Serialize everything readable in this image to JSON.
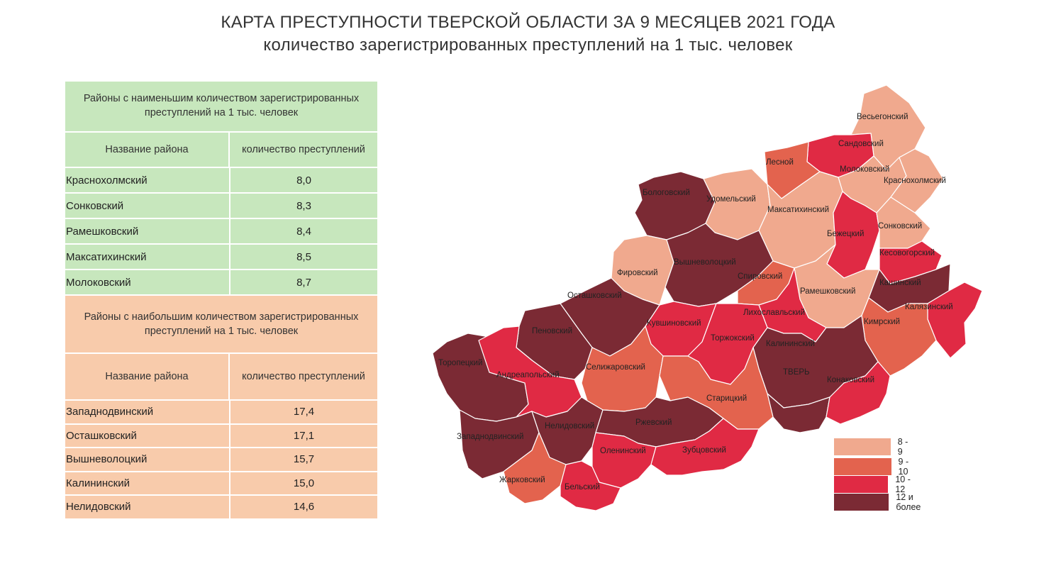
{
  "title": "КАРТА ПРЕСТУПНОСТИ ТВЕРСКОЙ ОБЛАСТИ ЗА 9 МЕСЯЦЕВ 2021 ГОДА",
  "subtitle": "количество зарегистрированных преступлений на 1 тыс. человек",
  "low_table": {
    "caption": "Районы с наименьшим количеством зарегистрированных преступлений на 1 тыс. человек",
    "col_name": "Название района",
    "col_value": "количество преступлений",
    "color": "#c7e7bd",
    "rows": [
      {
        "name": "Краснохолмский",
        "value": "8,0"
      },
      {
        "name": "Сонковский",
        "value": "8,3"
      },
      {
        "name": "Рамешковский",
        "value": "8,4"
      },
      {
        "name": "Максатихинский",
        "value": "8,5"
      },
      {
        "name": "Молоковский",
        "value": "8,7"
      }
    ]
  },
  "high_table": {
    "caption": "Районы с наибольшим количеством зарегистрированных преступлений на 1 тыс. человек",
    "col_name": "Название района",
    "col_value": "количество преступлений",
    "color": "#f8cbab",
    "rows": [
      {
        "name": "Западнодвинский",
        "value": "17,4"
      },
      {
        "name": "Осташковский",
        "value": "17,1"
      },
      {
        "name": "Вышневолоцкий",
        "value": "15,7"
      },
      {
        "name": "Калининский",
        "value": "15,0"
      },
      {
        "name": "Нелидовский",
        "value": "14,6"
      }
    ]
  },
  "legend": [
    {
      "label": "8 - 9",
      "color": "#f0a98e"
    },
    {
      "label": "9 - 10",
      "color": "#e3634e"
    },
    {
      "label": "10 - 12",
      "color": "#e02a44"
    },
    {
      "label": "12 и более",
      "color": "#7b2a34"
    }
  ],
  "districts": [
    {
      "name": "Весьегонский",
      "class": 0
    },
    {
      "name": "Сандовский",
      "class": 2
    },
    {
      "name": "Лесной",
      "class": 1
    },
    {
      "name": "Молоковский",
      "class": 0
    },
    {
      "name": "Краснохолмский",
      "class": 0
    },
    {
      "name": "Бологовский",
      "class": 3
    },
    {
      "name": "Удомельский",
      "class": 0
    },
    {
      "name": "Максатихинский",
      "class": 0
    },
    {
      "name": "Бежецкий",
      "class": 2
    },
    {
      "name": "Сонковский",
      "class": 0
    },
    {
      "name": "Кесовогорский",
      "class": 2
    },
    {
      "name": "Фировский",
      "class": 0
    },
    {
      "name": "Вышневолоцкий",
      "class": 3
    },
    {
      "name": "Спировский",
      "class": 1
    },
    {
      "name": "Рамешковский",
      "class": 0
    },
    {
      "name": "Кашинский",
      "class": 3
    },
    {
      "name": "Осташковский",
      "class": 3
    },
    {
      "name": "Калязинский",
      "class": 2
    },
    {
      "name": "Лихославльский",
      "class": 2
    },
    {
      "name": "Кимрский",
      "class": 1
    },
    {
      "name": "Пеновский",
      "class": 3
    },
    {
      "name": "Кувшиновский",
      "class": 2
    },
    {
      "name": "Торжокский",
      "class": 2
    },
    {
      "name": "Калининский",
      "class": 3
    },
    {
      "name": "Торопецкий",
      "class": 3
    },
    {
      "name": "Андреапольский",
      "class": 2
    },
    {
      "name": "Селижаровский",
      "class": 1
    },
    {
      "name": "ТВЕРЬ",
      "class": 3
    },
    {
      "name": "Конаковский",
      "class": 2
    },
    {
      "name": "Старицкий",
      "class": 1
    },
    {
      "name": "Западнодвинский",
      "class": 3
    },
    {
      "name": "Нелидовский",
      "class": 3
    },
    {
      "name": "Ржевский",
      "class": 3
    },
    {
      "name": "Оленинский",
      "class": 2
    },
    {
      "name": "Зубцовский",
      "class": 2
    },
    {
      "name": "Жарковский",
      "class": 1
    },
    {
      "name": "Бельский",
      "class": 2
    }
  ]
}
